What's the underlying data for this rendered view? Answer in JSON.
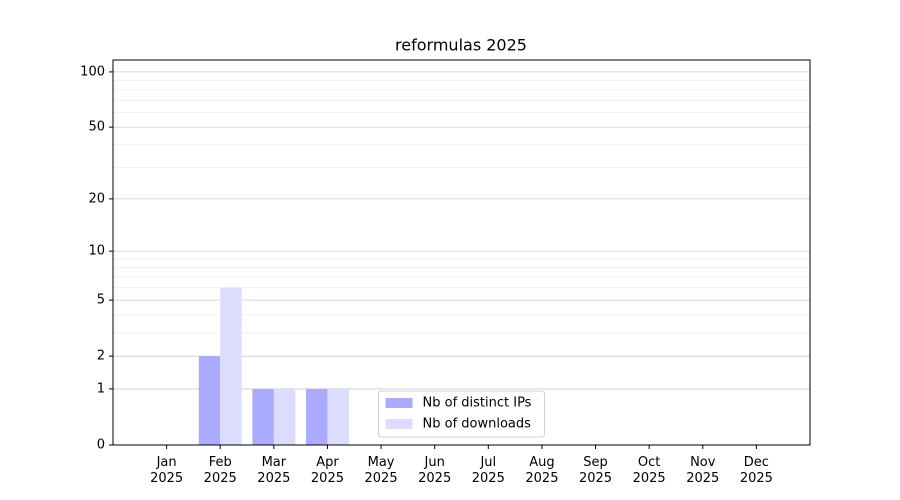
{
  "chart_data": {
    "type": "bar",
    "title": "reformulas 2025",
    "categories": [
      [
        "Jan",
        "2025"
      ],
      [
        "Feb",
        "2025"
      ],
      [
        "Mar",
        "2025"
      ],
      [
        "Apr",
        "2025"
      ],
      [
        "May",
        "2025"
      ],
      [
        "Jun",
        "2025"
      ],
      [
        "Jul",
        "2025"
      ],
      [
        "Aug",
        "2025"
      ],
      [
        "Sep",
        "2025"
      ],
      [
        "Oct",
        "2025"
      ],
      [
        "Nov",
        "2025"
      ],
      [
        "Dec",
        "2025"
      ]
    ],
    "series": [
      {
        "name": "Nb of distinct IPs",
        "color": "#aaaaff",
        "values": [
          0,
          2,
          1,
          1,
          0,
          0,
          0,
          0,
          0,
          0,
          0,
          0
        ]
      },
      {
        "name": "Nb of downloads",
        "color": "#dcdcff",
        "values": [
          0,
          6,
          1,
          1,
          0,
          0,
          0,
          0,
          0,
          0,
          0,
          0
        ]
      }
    ],
    "yscale": "log1p",
    "ylim": [
      0,
      116
    ],
    "yticks": [
      0,
      1,
      2,
      5,
      10,
      20,
      50,
      100
    ],
    "minor_yticks": [
      3,
      4,
      6,
      7,
      8,
      9,
      30,
      40,
      60,
      70,
      80,
      90
    ],
    "grid": true,
    "legend": "lower center"
  }
}
